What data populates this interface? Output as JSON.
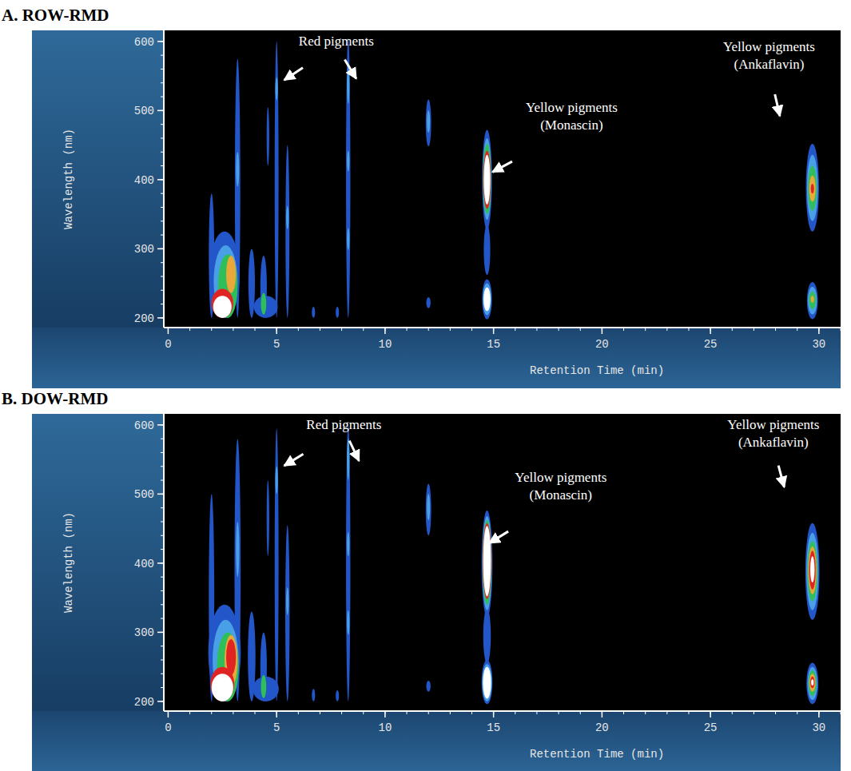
{
  "chart_data": [
    {
      "type": "heatmap",
      "title": "A. ROW-RMD",
      "x_label": "Retention Time (min)",
      "y_label": "Wavelength (nm)",
      "xlim": [
        -0.2,
        31
      ],
      "ylim": [
        186,
        616
      ],
      "xticks": [
        0,
        5,
        10,
        15,
        20,
        25,
        30
      ],
      "yticks": [
        200,
        300,
        400,
        500,
        600
      ],
      "cells": [
        {
          "x": 2.0,
          "w": 0.25,
          "y0": 200,
          "y1": 380,
          "level": 1
        },
        {
          "x": 2.6,
          "w": 1.4,
          "y0": 200,
          "y1": 325,
          "level": 1
        },
        {
          "x": 2.65,
          "w": 1.1,
          "y0": 200,
          "y1": 305,
          "level": 2
        },
        {
          "x": 2.75,
          "w": 0.9,
          "y0": 200,
          "y1": 292,
          "level": 3
        },
        {
          "x": 2.9,
          "w": 0.45,
          "y0": 236,
          "y1": 290,
          "level": 4
        },
        {
          "x": 2.5,
          "w": 1.0,
          "y0": 200,
          "y1": 242,
          "level": 5
        },
        {
          "x": 2.5,
          "w": 0.85,
          "y0": 200,
          "y1": 232,
          "level": 6
        },
        {
          "x": 3.2,
          "w": 0.25,
          "y0": 200,
          "y1": 575,
          "level": 1
        },
        {
          "x": 3.2,
          "w": 0.15,
          "y0": 390,
          "y1": 440,
          "level": 2
        },
        {
          "x": 3.85,
          "w": 0.3,
          "y0": 200,
          "y1": 300,
          "level": 1
        },
        {
          "x": 4.5,
          "w": 1.1,
          "y0": 200,
          "y1": 232,
          "level": 1
        },
        {
          "x": 4.4,
          "w": 0.3,
          "y0": 200,
          "y1": 290,
          "level": 1
        },
        {
          "x": 4.4,
          "w": 0.25,
          "y0": 205,
          "y1": 236,
          "level": 3
        },
        {
          "x": 4.6,
          "w": 0.12,
          "y0": 420,
          "y1": 505,
          "level": 1
        },
        {
          "x": 5.0,
          "w": 0.18,
          "y0": 200,
          "y1": 600,
          "level": 1
        },
        {
          "x": 5.0,
          "w": 0.12,
          "y0": 515,
          "y1": 548,
          "level": 2
        },
        {
          "x": 5.5,
          "w": 0.18,
          "y0": 200,
          "y1": 450,
          "level": 1
        },
        {
          "x": 5.5,
          "w": 0.12,
          "y0": 328,
          "y1": 362,
          "level": 2
        },
        {
          "x": 6.7,
          "w": 0.15,
          "y0": 200,
          "y1": 216,
          "level": 1
        },
        {
          "x": 7.8,
          "w": 0.15,
          "y0": 200,
          "y1": 216,
          "level": 1
        },
        {
          "x": 8.3,
          "w": 0.2,
          "y0": 200,
          "y1": 605,
          "level": 1
        },
        {
          "x": 8.3,
          "w": 0.12,
          "y0": 298,
          "y1": 330,
          "level": 2
        },
        {
          "x": 8.3,
          "w": 0.12,
          "y0": 412,
          "y1": 442,
          "level": 2
        },
        {
          "x": 8.3,
          "w": 0.12,
          "y0": 510,
          "y1": 562,
          "level": 2
        },
        {
          "x": 12.0,
          "w": 0.25,
          "y0": 448,
          "y1": 516,
          "level": 1
        },
        {
          "x": 12.0,
          "w": 0.15,
          "y0": 468,
          "y1": 500,
          "level": 2
        },
        {
          "x": 12.0,
          "w": 0.2,
          "y0": 214,
          "y1": 230,
          "level": 1
        },
        {
          "x": 14.7,
          "w": 0.3,
          "y0": 262,
          "y1": 335,
          "level": 1
        },
        {
          "x": 14.7,
          "w": 0.45,
          "y0": 328,
          "y1": 472,
          "level": 1
        },
        {
          "x": 14.7,
          "w": 0.4,
          "y0": 342,
          "y1": 460,
          "level": 2
        },
        {
          "x": 14.7,
          "w": 0.38,
          "y0": 350,
          "y1": 452,
          "level": 3
        },
        {
          "x": 14.7,
          "w": 0.35,
          "y0": 358,
          "y1": 442,
          "level": 5
        },
        {
          "x": 14.7,
          "w": 0.3,
          "y0": 364,
          "y1": 436,
          "level": 6
        },
        {
          "x": 14.7,
          "w": 0.45,
          "y0": 198,
          "y1": 256,
          "level": 1
        },
        {
          "x": 14.7,
          "w": 0.4,
          "y0": 204,
          "y1": 250,
          "level": 2
        },
        {
          "x": 14.7,
          "w": 0.32,
          "y0": 210,
          "y1": 244,
          "level": 6
        },
        {
          "x": 29.7,
          "w": 0.6,
          "y0": 325,
          "y1": 452,
          "level": 1
        },
        {
          "x": 29.7,
          "w": 0.5,
          "y0": 340,
          "y1": 436,
          "level": 2
        },
        {
          "x": 29.7,
          "w": 0.4,
          "y0": 355,
          "y1": 420,
          "level": 3
        },
        {
          "x": 29.7,
          "w": 0.3,
          "y0": 368,
          "y1": 406,
          "level": 4
        },
        {
          "x": 29.7,
          "w": 0.15,
          "y0": 380,
          "y1": 394,
          "level": 5
        },
        {
          "x": 29.7,
          "w": 0.5,
          "y0": 198,
          "y1": 252,
          "level": 1
        },
        {
          "x": 29.7,
          "w": 0.42,
          "y0": 205,
          "y1": 245,
          "level": 2
        },
        {
          "x": 29.7,
          "w": 0.33,
          "y0": 213,
          "y1": 238,
          "level": 3
        },
        {
          "x": 29.7,
          "w": 0.15,
          "y0": 222,
          "y1": 232,
          "level": 4
        }
      ],
      "annotations": [
        {
          "lines": [
            "Red pigments"
          ],
          "x": 7.75,
          "y": 594,
          "arrows": [
            [
              5.35,
              544
            ],
            [
              8.67,
              546
            ]
          ]
        },
        {
          "lines": [
            "Yellow pigments",
            "(Monascin)"
          ],
          "x": 18.6,
          "y": 498,
          "arrows": [
            [
              14.95,
              411
            ]
          ]
        },
        {
          "lines": [
            "Yellow pigments",
            "(Ankaflavin)"
          ],
          "x": 27.7,
          "y": 586,
          "arrows": [
            [
              28.2,
              492
            ]
          ]
        }
      ]
    },
    {
      "type": "heatmap",
      "title": "B. DOW-RMD",
      "x_label": "Retention Time (min)",
      "y_label": "Wavelength (nm)",
      "xlim": [
        -0.2,
        31
      ],
      "ylim": [
        186,
        616
      ],
      "xticks": [
        0,
        5,
        10,
        15,
        20,
        25,
        30
      ],
      "yticks": [
        200,
        300,
        400,
        500,
        600
      ],
      "cells": [
        {
          "x": 2.0,
          "w": 0.25,
          "y0": 200,
          "y1": 500,
          "level": 1
        },
        {
          "x": 2.6,
          "w": 1.5,
          "y0": 200,
          "y1": 340,
          "level": 1
        },
        {
          "x": 2.65,
          "w": 1.2,
          "y0": 200,
          "y1": 318,
          "level": 2
        },
        {
          "x": 2.75,
          "w": 1.0,
          "y0": 200,
          "y1": 300,
          "level": 3
        },
        {
          "x": 2.9,
          "w": 0.6,
          "y0": 222,
          "y1": 296,
          "level": 4
        },
        {
          "x": 2.9,
          "w": 0.45,
          "y0": 238,
          "y1": 290,
          "level": 5
        },
        {
          "x": 2.5,
          "w": 1.1,
          "y0": 200,
          "y1": 250,
          "level": 5
        },
        {
          "x": 2.5,
          "w": 1.0,
          "y0": 200,
          "y1": 240,
          "level": 6
        },
        {
          "x": 3.2,
          "w": 0.28,
          "y0": 200,
          "y1": 580,
          "level": 1
        },
        {
          "x": 3.2,
          "w": 0.15,
          "y0": 380,
          "y1": 460,
          "level": 2
        },
        {
          "x": 3.85,
          "w": 0.35,
          "y0": 200,
          "y1": 330,
          "level": 1
        },
        {
          "x": 4.5,
          "w": 1.2,
          "y0": 200,
          "y1": 236,
          "level": 1
        },
        {
          "x": 4.4,
          "w": 0.3,
          "y0": 200,
          "y1": 300,
          "level": 1
        },
        {
          "x": 4.4,
          "w": 0.25,
          "y0": 205,
          "y1": 238,
          "level": 3
        },
        {
          "x": 4.6,
          "w": 0.12,
          "y0": 410,
          "y1": 520,
          "level": 1
        },
        {
          "x": 5.0,
          "w": 0.18,
          "y0": 200,
          "y1": 595,
          "level": 1
        },
        {
          "x": 5.0,
          "w": 0.12,
          "y0": 500,
          "y1": 540,
          "level": 2
        },
        {
          "x": 5.5,
          "w": 0.2,
          "y0": 200,
          "y1": 455,
          "level": 1
        },
        {
          "x": 5.5,
          "w": 0.12,
          "y0": 325,
          "y1": 365,
          "level": 2
        },
        {
          "x": 6.7,
          "w": 0.15,
          "y0": 200,
          "y1": 218,
          "level": 1
        },
        {
          "x": 7.8,
          "w": 0.15,
          "y0": 200,
          "y1": 216,
          "level": 1
        },
        {
          "x": 8.3,
          "w": 0.2,
          "y0": 200,
          "y1": 600,
          "level": 1
        },
        {
          "x": 8.3,
          "w": 0.12,
          "y0": 296,
          "y1": 332,
          "level": 2
        },
        {
          "x": 8.3,
          "w": 0.12,
          "y0": 410,
          "y1": 445,
          "level": 2
        },
        {
          "x": 8.3,
          "w": 0.12,
          "y0": 520,
          "y1": 580,
          "level": 2
        },
        {
          "x": 12.0,
          "w": 0.25,
          "y0": 440,
          "y1": 515,
          "level": 1
        },
        {
          "x": 12.0,
          "w": 0.15,
          "y0": 462,
          "y1": 500,
          "level": 2
        },
        {
          "x": 12.0,
          "w": 0.2,
          "y0": 214,
          "y1": 230,
          "level": 1
        },
        {
          "x": 14.7,
          "w": 0.35,
          "y0": 255,
          "y1": 335,
          "level": 1
        },
        {
          "x": 14.7,
          "w": 0.5,
          "y0": 322,
          "y1": 476,
          "level": 1
        },
        {
          "x": 14.7,
          "w": 0.45,
          "y0": 332,
          "y1": 468,
          "level": 2
        },
        {
          "x": 14.7,
          "w": 0.42,
          "y0": 340,
          "y1": 462,
          "level": 3
        },
        {
          "x": 14.7,
          "w": 0.4,
          "y0": 348,
          "y1": 458,
          "level": 5
        },
        {
          "x": 14.7,
          "w": 0.36,
          "y0": 352,
          "y1": 454,
          "level": 6
        },
        {
          "x": 14.7,
          "w": 0.5,
          "y0": 196,
          "y1": 260,
          "level": 1
        },
        {
          "x": 14.7,
          "w": 0.45,
          "y0": 200,
          "y1": 254,
          "level": 2
        },
        {
          "x": 14.7,
          "w": 0.38,
          "y0": 204,
          "y1": 250,
          "level": 6
        },
        {
          "x": 29.7,
          "w": 0.65,
          "y0": 318,
          "y1": 458,
          "level": 1
        },
        {
          "x": 29.7,
          "w": 0.55,
          "y0": 332,
          "y1": 444,
          "level": 2
        },
        {
          "x": 29.7,
          "w": 0.46,
          "y0": 345,
          "y1": 432,
          "level": 3
        },
        {
          "x": 29.7,
          "w": 0.38,
          "y0": 355,
          "y1": 424,
          "level": 4
        },
        {
          "x": 29.7,
          "w": 0.3,
          "y0": 362,
          "y1": 418,
          "level": 5
        },
        {
          "x": 29.7,
          "w": 0.2,
          "y0": 372,
          "y1": 410,
          "level": 6
        },
        {
          "x": 29.7,
          "w": 0.55,
          "y0": 196,
          "y1": 256,
          "level": 1
        },
        {
          "x": 29.7,
          "w": 0.45,
          "y0": 202,
          "y1": 250,
          "level": 2
        },
        {
          "x": 29.7,
          "w": 0.37,
          "y0": 208,
          "y1": 245,
          "level": 3
        },
        {
          "x": 29.7,
          "w": 0.28,
          "y0": 214,
          "y1": 240,
          "level": 4
        },
        {
          "x": 29.7,
          "w": 0.2,
          "y0": 219,
          "y1": 236,
          "level": 5
        },
        {
          "x": 29.7,
          "w": 0.12,
          "y0": 223,
          "y1": 232,
          "level": 6
        }
      ],
      "annotations": [
        {
          "lines": [
            "Red pigments"
          ],
          "x": 8.1,
          "y": 594,
          "arrows": [
            [
              5.35,
              541
            ],
            [
              8.8,
              548
            ]
          ]
        },
        {
          "lines": [
            "Yellow pigments",
            "(Monascin)"
          ],
          "x": 18.1,
          "y": 518,
          "arrows": [
            [
              14.8,
              429
            ]
          ]
        },
        {
          "lines": [
            "Yellow pigments",
            "(Ankaflavin)"
          ],
          "x": 27.9,
          "y": 594,
          "arrows": [
            [
              28.4,
              510
            ]
          ]
        }
      ]
    }
  ]
}
